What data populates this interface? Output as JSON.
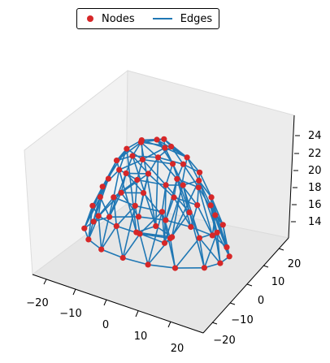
{
  "chart_data": {
    "type": "scatter",
    "projection": "3d",
    "title": "",
    "xlabel": "",
    "ylabel": "",
    "zlabel": "",
    "xlim": [
      -25,
      25
    ],
    "ylim": [
      -25,
      25
    ],
    "zlim": [
      12.5,
      25.5
    ],
    "x_ticks": [
      -20,
      -10,
      0,
      10,
      20
    ],
    "y_ticks": [
      -20,
      -10,
      0,
      10,
      20
    ],
    "z_ticks": [
      14,
      16,
      18,
      20,
      22,
      24
    ],
    "legend": {
      "placement": "top-center",
      "entries": [
        {
          "label": "Nodes",
          "marker": "circle",
          "color": "#d62728"
        },
        {
          "label": "Edges",
          "marker": "line",
          "color": "#1f77b4"
        }
      ]
    },
    "grid": false,
    "colors": {
      "nodes": "#d62728",
      "edges": "#1f77b4"
    },
    "series": [
      {
        "name": "Nodes",
        "note": "approximate hemispherical node cloud",
        "nodes": [
          [
            0,
            0,
            25
          ],
          [
            0,
            4,
            24.7
          ],
          [
            3.5,
            -2,
            24.7
          ],
          [
            -3.5,
            -2,
            24.7
          ],
          [
            0,
            8,
            23.5
          ],
          [
            6.9,
            4,
            23.5
          ],
          [
            6.9,
            -4,
            23.5
          ],
          [
            0,
            -8,
            23.5
          ],
          [
            -6.9,
            -4,
            23.5
          ],
          [
            -6.9,
            4,
            23.5
          ],
          [
            11,
            3,
            21.5
          ],
          [
            8,
            9,
            21.5
          ],
          [
            2,
            11,
            21.5
          ],
          [
            -5,
            10,
            21.5
          ],
          [
            -10,
            5,
            21.5
          ],
          [
            -11,
            -2,
            21.5
          ],
          [
            -7,
            -8,
            21.5
          ],
          [
            0,
            -11,
            21.5
          ],
          [
            7,
            -8,
            21.5
          ],
          [
            10,
            -4,
            21.5
          ],
          [
            14,
            4,
            19
          ],
          [
            11,
            10,
            19
          ],
          [
            5,
            14,
            19
          ],
          [
            -2,
            15,
            19
          ],
          [
            -9,
            12,
            19
          ],
          [
            -13,
            7,
            19
          ],
          [
            -14,
            -1,
            19
          ],
          [
            -12,
            -8,
            19
          ],
          [
            -6,
            -13,
            19
          ],
          [
            1,
            -14,
            19
          ],
          [
            8,
            -12,
            19
          ],
          [
            13,
            -6,
            19
          ],
          [
            17,
            2,
            16.5
          ],
          [
            15,
            9,
            16.5
          ],
          [
            10,
            14,
            16.5
          ],
          [
            3,
            17,
            16.5
          ],
          [
            -4,
            17,
            16.5
          ],
          [
            -11,
            13,
            16.5
          ],
          [
            -15,
            8,
            16.5
          ],
          [
            -17,
            0,
            16.5
          ],
          [
            -15,
            -8,
            16.5
          ],
          [
            -10,
            -14,
            16.5
          ],
          [
            -3,
            -17,
            16.5
          ],
          [
            4,
            -17,
            16.5
          ],
          [
            11,
            -13,
            16.5
          ],
          [
            16,
            -6,
            16.5
          ],
          [
            19,
            0,
            13.5
          ],
          [
            18,
            7,
            13.5
          ],
          [
            14,
            13,
            13.5
          ],
          [
            7,
            18,
            13.5
          ],
          [
            0,
            19,
            13.5
          ],
          [
            -7,
            18,
            13.5
          ],
          [
            -13,
            14,
            13.5
          ],
          [
            -18,
            7,
            13.5
          ],
          [
            -19,
            0,
            13.5
          ],
          [
            -18,
            -7,
            13.5
          ],
          [
            -13,
            -14,
            13.5
          ],
          [
            -7,
            -18,
            13.5
          ],
          [
            0,
            -19,
            13.5
          ],
          [
            7,
            -18,
            13.5
          ],
          [
            13,
            -14,
            13.5
          ],
          [
            18,
            -7,
            13.5
          ],
          [
            4,
            1,
            14.5
          ],
          [
            -3,
            5,
            14.5
          ],
          [
            -4,
            -4,
            14.5
          ],
          [
            5,
            -5,
            14.5
          ]
        ]
      },
      {
        "name": "Edges",
        "note": "Delaunay-style triangulation between neighbouring nodes"
      }
    ]
  },
  "legend": {
    "nodes_label": "Nodes",
    "edges_label": "Edges"
  },
  "axes": {
    "x_tick_labels": [
      "−20",
      "−10",
      "0",
      "10",
      "20"
    ],
    "y_tick_labels": [
      "−20",
      "−10",
      "0",
      "10",
      "20"
    ],
    "z_tick_labels": [
      "14",
      "16",
      "18",
      "20",
      "22",
      "24"
    ]
  }
}
